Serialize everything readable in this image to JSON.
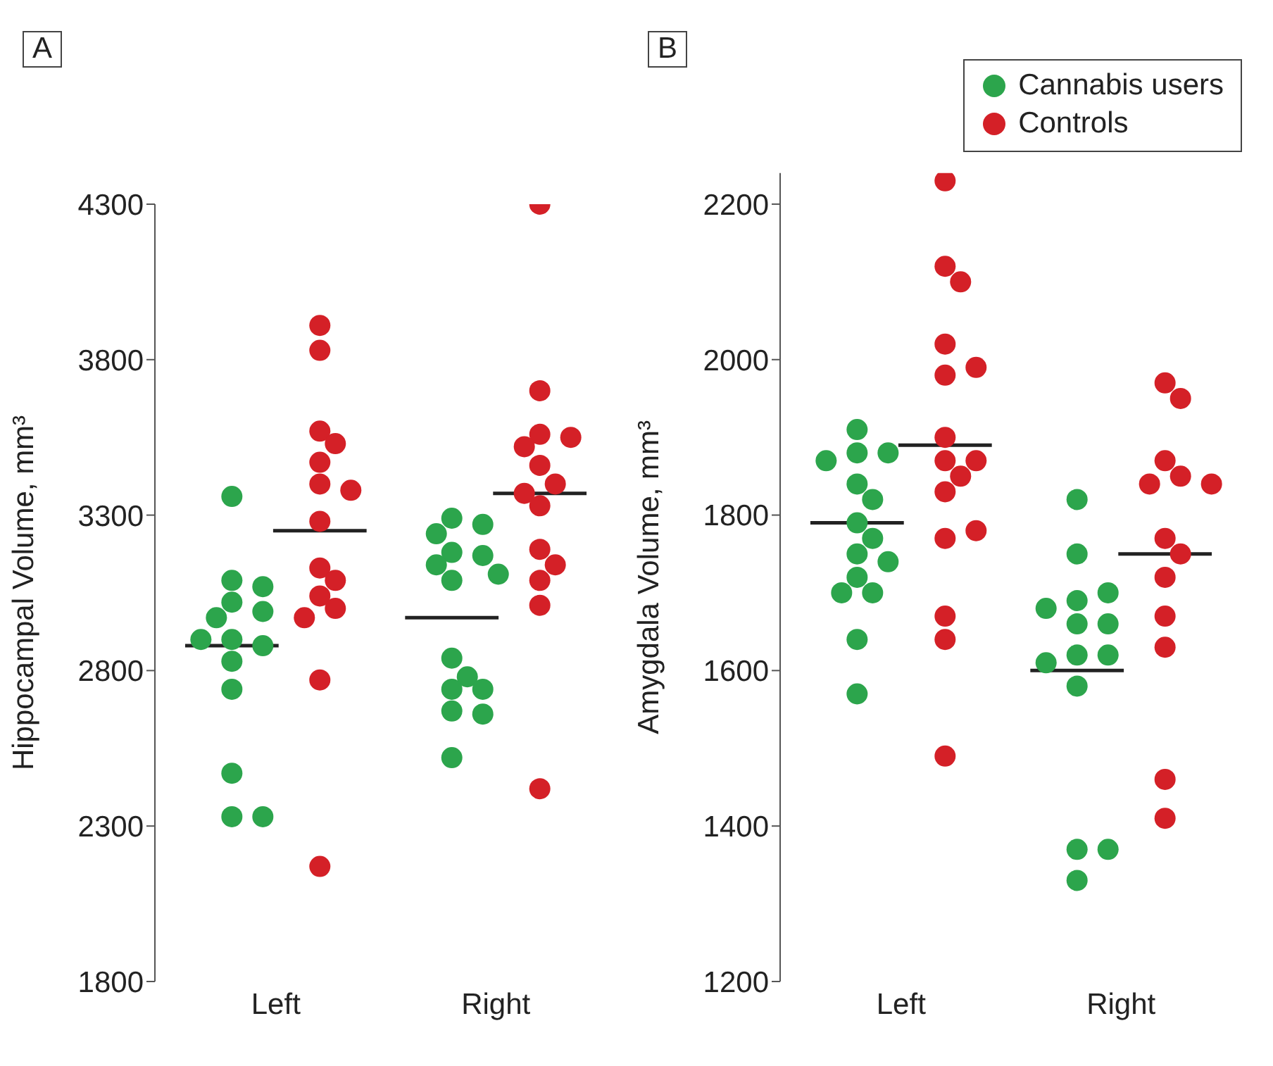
{
  "chart_data": [
    {
      "type": "scatter",
      "title": "A",
      "ylabel": "Hippocampal Volume, mm³",
      "categories": [
        "Left",
        "Right"
      ],
      "ylim": [
        1800,
        4300
      ],
      "yticks": [
        1800,
        2300,
        2800,
        3300,
        3800,
        4300
      ],
      "grid": false,
      "legend": false,
      "marker": "circle",
      "ref_lines": [
        {
          "axis": "y",
          "value": 2880,
          "color": "#222222"
        },
        {
          "axis": "y",
          "value": 3250,
          "color": "#222222"
        },
        {
          "axis": "y",
          "value": 2970,
          "color": "#222222"
        },
        {
          "axis": "y",
          "value": 3370,
          "color": "#222222"
        }
      ],
      "series": [
        {
          "color": "#2ca54c",
          "x": [
            "Left",
            "Left",
            "Left",
            "Left",
            "Left",
            "Left",
            "Left",
            "Left",
            "Left",
            "Left",
            "Left",
            "Left",
            "Left",
            "Left",
            "Right",
            "Right",
            "Right",
            "Right",
            "Right",
            "Right",
            "Right",
            "Right",
            "Right",
            "Right",
            "Right",
            "Right",
            "Right",
            "Right",
            "Right"
          ],
          "values": [
            3360,
            3090,
            3070,
            3020,
            2990,
            2970,
            2900,
            2880,
            2900,
            2830,
            2740,
            2470,
            2330,
            2330,
            3290,
            3270,
            3240,
            3180,
            3170,
            3140,
            3090,
            3110,
            2840,
            2780,
            2740,
            2740,
            2670,
            2660,
            2520
          ]
        },
        {
          "color": "#d42027",
          "x": [
            "Left",
            "Left",
            "Left",
            "Left",
            "Left",
            "Left",
            "Left",
            "Left",
            "Left",
            "Left",
            "Left",
            "Left",
            "Left",
            "Left",
            "Left",
            "Right",
            "Right",
            "Right",
            "Right",
            "Right",
            "Right",
            "Right",
            "Right",
            "Right",
            "Right",
            "Right",
            "Right",
            "Right",
            "Right"
          ],
          "values": [
            3910,
            3830,
            3570,
            3530,
            3470,
            3400,
            3380,
            3280,
            3130,
            3090,
            3040,
            3000,
            2970,
            2770,
            2170,
            4300,
            3700,
            3560,
            3550,
            3520,
            3460,
            3400,
            3370,
            3330,
            3190,
            3140,
            3090,
            3010,
            2420
          ]
        }
      ]
    },
    {
      "type": "scatter",
      "title": "B",
      "ylabel": "Amygdala Volume, mm³",
      "categories": [
        "Left",
        "Right"
      ],
      "ylim": [
        1200,
        2240
      ],
      "yticks": [
        1200,
        1400,
        1600,
        1800,
        2000,
        2200
      ],
      "grid": false,
      "legend": "top right",
      "marker": "circle",
      "ref_lines": [
        {
          "axis": "y",
          "value": 1790,
          "color": "#222222"
        },
        {
          "axis": "y",
          "value": 1890,
          "color": "#222222"
        },
        {
          "axis": "y",
          "value": 1600,
          "color": "#222222"
        },
        {
          "axis": "y",
          "value": 1750,
          "color": "#222222"
        }
      ],
      "series": [
        {
          "name": "Cannabis users",
          "color": "#2ca54c",
          "x": [
            "Left",
            "Left",
            "Left",
            "Left",
            "Left",
            "Left",
            "Left",
            "Left",
            "Left",
            "Left",
            "Left",
            "Left",
            "Left",
            "Left",
            "Left",
            "Right",
            "Right",
            "Right",
            "Right",
            "Right",
            "Right",
            "Right",
            "Right",
            "Right",
            "Right",
            "Right",
            "Right",
            "Right",
            "Right"
          ],
          "values": [
            1910,
            1880,
            1880,
            1870,
            1840,
            1820,
            1790,
            1770,
            1750,
            1740,
            1720,
            1700,
            1700,
            1640,
            1570,
            1820,
            1750,
            1690,
            1700,
            1680,
            1660,
            1660,
            1620,
            1620,
            1610,
            1580,
            1370,
            1370,
            1330
          ]
        },
        {
          "name": "Controls",
          "color": "#d42027",
          "x": [
            "Left",
            "Left",
            "Left",
            "Left",
            "Left",
            "Left",
            "Left",
            "Left",
            "Left",
            "Left",
            "Left",
            "Left",
            "Left",
            "Left",
            "Left",
            "Left",
            "Right",
            "Right",
            "Right",
            "Right",
            "Right",
            "Right",
            "Right",
            "Right",
            "Right",
            "Right",
            "Right",
            "Right",
            "Right"
          ],
          "values": [
            2230,
            2120,
            2100,
            2020,
            1980,
            1990,
            1900,
            1870,
            1870,
            1850,
            1830,
            1770,
            1780,
            1670,
            1640,
            1490,
            1970,
            1950,
            1870,
            1850,
            1840,
            1840,
            1770,
            1750,
            1720,
            1670,
            1630,
            1460,
            1410
          ]
        }
      ]
    }
  ]
}
